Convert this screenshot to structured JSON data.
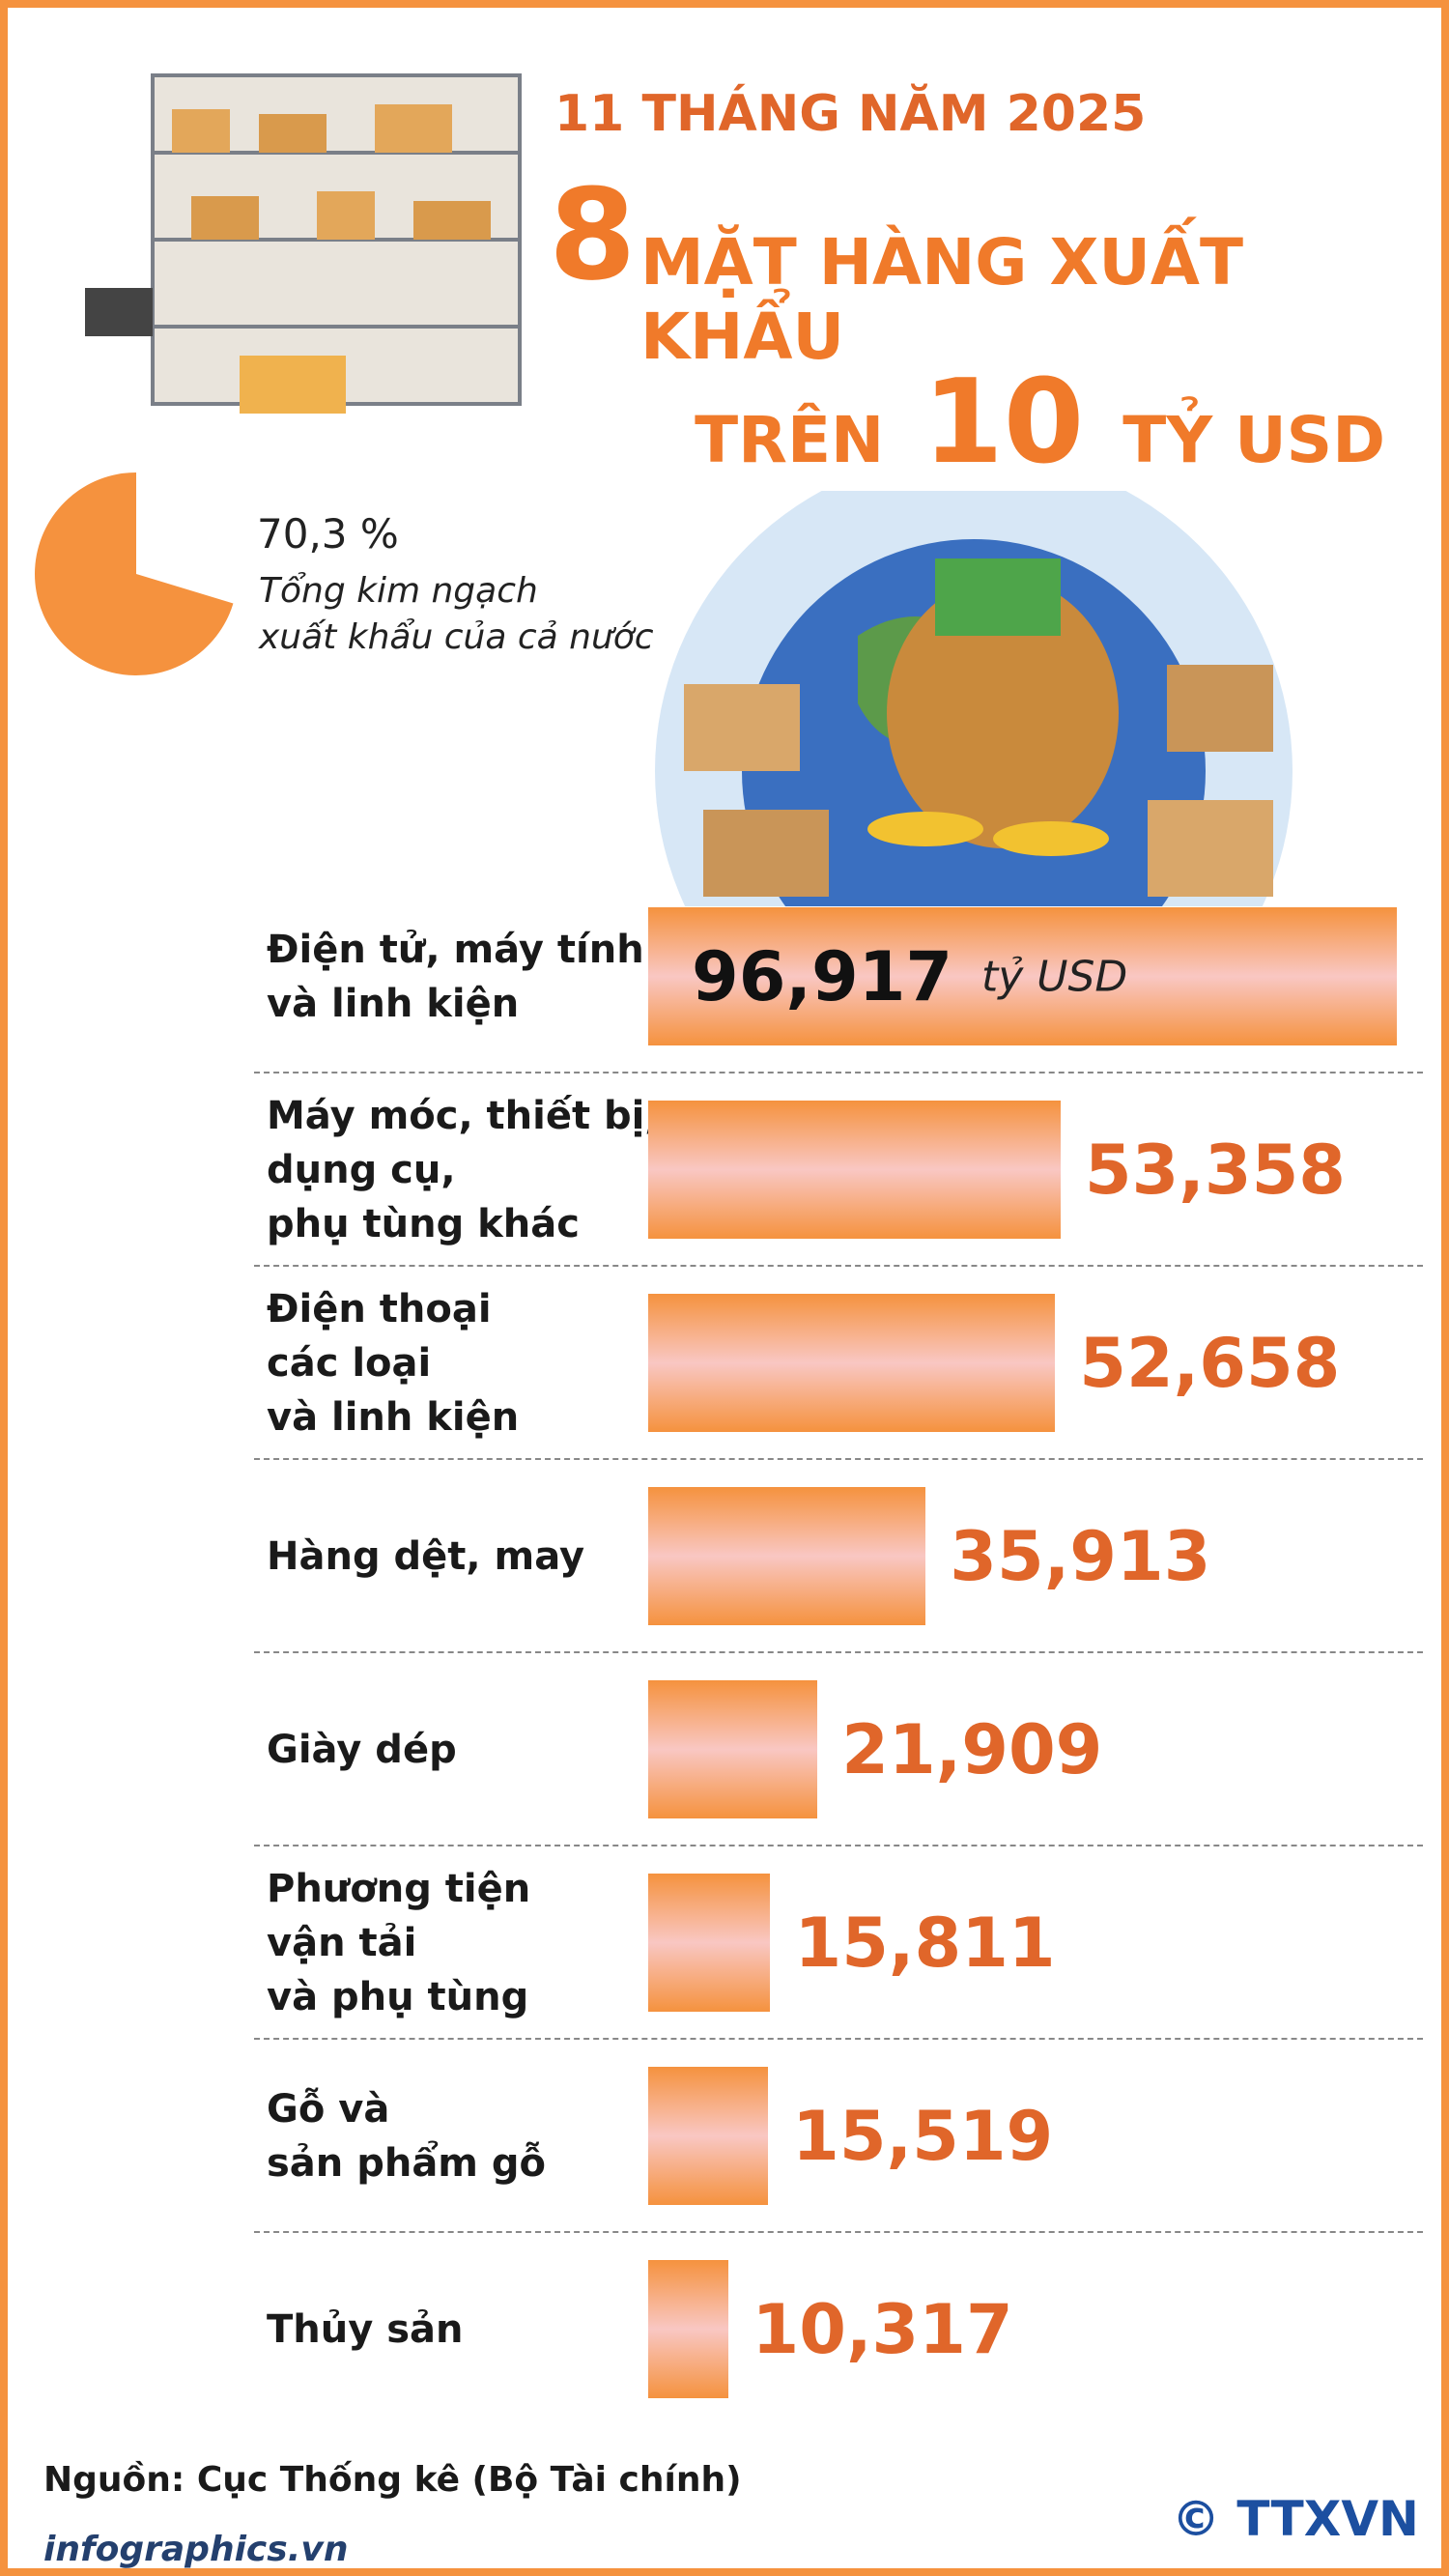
{
  "chart_data": {
    "type": "bar",
    "orientation": "horizontal",
    "supertitle": "11 THÁNG NĂM 2025",
    "title_number": "8",
    "title": "MẶT HÀNG XUẤT KHẨU",
    "title_line2_prefix": "TRÊN",
    "title_line2_number": "10",
    "title_line2_suffix": "TỶ USD",
    "share": {
      "value": 70.3,
      "value_label": "70,3 %",
      "caption": "Tổng kim ngạch\nxuất khẩu của cả nước",
      "color": "#f5923e"
    },
    "categories": [
      "Điện tử, máy tính\nvà linh kiện",
      "Máy móc, thiết bị,\ndụng cụ,\nphụ tùng khác",
      "Điện thoại\ncác loại\nvà linh kiện",
      "Hàng dệt, may",
      "Giày dép",
      "Phương tiện\nvận tải\nvà phụ tùng",
      "Gỗ và\nsản phẩm gỗ",
      "Thủy sản"
    ],
    "values": [
      96.917,
      53.358,
      52.658,
      35.913,
      21.909,
      15.811,
      15.519,
      10.317
    ],
    "value_labels": [
      "96,917",
      "53,358",
      "52,658",
      "35,913",
      "21,909",
      "15,811",
      "15,519",
      "10,317"
    ],
    "unit": "tỷ USD",
    "color": "#f5923e",
    "xlim": [
      0,
      100
    ],
    "source": "Nguồn: Cục Thống kê (Bộ Tài chính)",
    "site": "infographics.vn",
    "agency": "© TTXVN"
  }
}
